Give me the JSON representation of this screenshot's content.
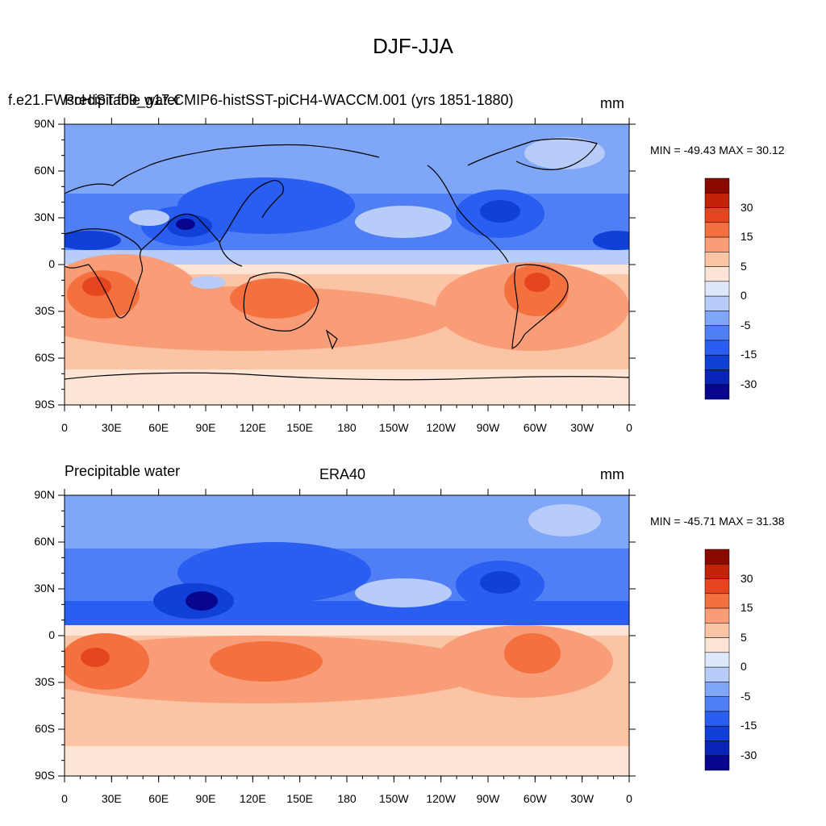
{
  "main_title": "DJF-JJA",
  "colors": {
    "levels": [
      -30,
      -15,
      -5,
      0,
      5,
      15,
      30
    ],
    "palette": [
      "#08068e",
      "#0a24b8",
      "#1040d8",
      "#2a5ef0",
      "#4f7ef5",
      "#7fa6f7",
      "#b7ccf8",
      "#dde9fb",
      "#fde5d6",
      "#fbc4a5",
      "#f89d77",
      "#f4713f",
      "#e6461f",
      "#c32409",
      "#8b0a00"
    ]
  },
  "panels": [
    {
      "left_label": "Precipitable water",
      "overlap_label": "f.e21.FWscHIST.f09_g17.CMIP6-histSST-piCH4-WACCM.001 (yrs 1851-1880)",
      "center_label": "",
      "right_label": "mm",
      "stats": "MIN = -49.43 MAX =  30.12"
    },
    {
      "left_label": "Precipitable water",
      "overlap_label": "",
      "center_label": "ERA40",
      "right_label": "mm",
      "stats": "MIN = -45.71 MAX =  31.38"
    }
  ],
  "lat_ticks": [
    "90N",
    "60N",
    "30N",
    "0",
    "30S",
    "60S",
    "90S"
  ],
  "lon_ticks": [
    "0",
    "30E",
    "60E",
    "90E",
    "120E",
    "150E",
    "180",
    "150W",
    "120W",
    "90W",
    "60W",
    "30W",
    "0"
  ],
  "colorbar_labels": [
    "30",
    "15",
    "5",
    "0",
    "-5",
    "-15",
    "-30"
  ]
}
